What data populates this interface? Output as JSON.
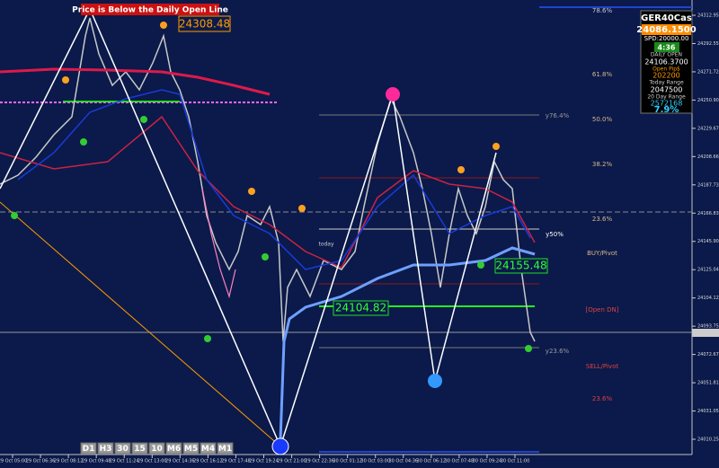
{
  "banner": "Price is Below the Daily Open Line",
  "price_tags": [
    "24308.48",
    "24155.48",
    "24104.82"
  ],
  "levels": [
    "78.6%",
    "61.8%",
    "50.0%",
    "38.2%",
    "23.6%",
    "y50%",
    "BUY/Pivot",
    "[Open DN]",
    "SELL/Pivot",
    "23.6%",
    "y76.4%",
    "y23.6%"
  ],
  "today_label": "today",
  "panel": {
    "symbol": "GER40Cas",
    "price": "24086.1500",
    "spread": "SPD:20000.00",
    "timer": "4:36",
    "daily_open_label": "DAILY OPEN",
    "daily_open": "24106.3700",
    "open_pips_label": "Open Pip$",
    "open_pips": "202200",
    "today_range_label": "Today Range",
    "today_range": "2047500",
    "day20_range_label": "20 Day Range",
    "day20_range": "2572168",
    "ratio": "7.9%"
  },
  "timeframes": [
    "D1",
    "H3",
    "30",
    "15",
    "10",
    "M6",
    "M5",
    "M4",
    "M1"
  ],
  "price_axis": [
    "24312.95",
    "24292.55",
    "24271.72",
    "24250.90",
    "24229.67",
    "24208.66",
    "24187.73",
    "24166.83",
    "24145.90",
    "24125.04",
    "24104.12",
    "24093.75",
    "24072.67",
    "24051.81",
    "24031.05",
    "24010.25"
  ],
  "time_axis": [
    "29 Oct 05:00",
    "29 Oct 06:36",
    "29 Oct 08:12",
    "29 Oct 09:48",
    "29 Oct 11:24",
    "29 Oct 13:00",
    "29 Oct 14:36",
    "29 Oct 16:12",
    "29 Oct 17:48",
    "29 Oct 19:24",
    "29 Oct 21:00",
    "29 Oct 22:36",
    "30 Oct 01:12",
    "30 Oct 03:00",
    "30 Oct 04:36",
    "30 Oct 06:12",
    "30 Oct 07:48",
    "30 Oct 09:24",
    "30 Oct 11:00"
  ]
}
